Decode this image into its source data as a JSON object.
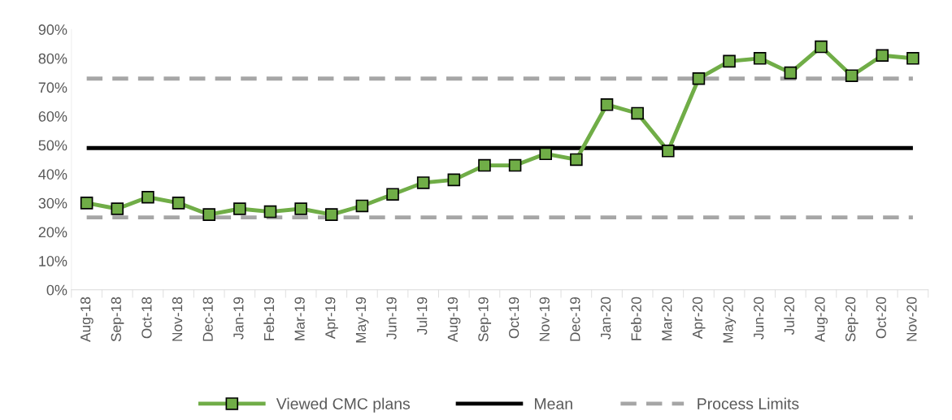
{
  "chart_data": {
    "type": "line",
    "categories": [
      "Aug-18",
      "Sep-18",
      "Oct-18",
      "Nov-18",
      "Dec-18",
      "Jan-19",
      "Feb-19",
      "Mar-19",
      "Apr-19",
      "May-19",
      "Jun-19",
      "Jul-19",
      "Aug-19",
      "Sep-19",
      "Oct-19",
      "Nov-19",
      "Dec-19",
      "Jan-20",
      "Feb-20",
      "Mar-20",
      "Apr-20",
      "May-20",
      "Jun-20",
      "Jul-20",
      "Aug-20",
      "Sep-20",
      "Oct-20",
      "Nov-20"
    ],
    "series": [
      {
        "name": "Viewed CMC plans",
        "color": "#70ad47",
        "values": [
          30,
          28,
          32,
          30,
          26,
          28,
          27,
          28,
          26,
          29,
          33,
          37,
          38,
          43,
          43,
          47,
          45,
          64,
          61,
          48,
          73,
          79,
          80,
          75,
          84,
          74,
          81,
          80
        ]
      }
    ],
    "ref_lines": [
      {
        "axis": "y",
        "value": 49,
        "label": "Mean",
        "color": "#000000",
        "line_style": "solid"
      },
      {
        "axis": "y",
        "value": 73,
        "label": "Process Limits",
        "color": "#a6a6a6",
        "line_style": "dashed"
      },
      {
        "axis": "y",
        "value": 25,
        "color": "#a6a6a6",
        "line_style": "dashed"
      }
    ],
    "ylim": [
      0,
      90
    ],
    "yticks": [
      {
        "value": 0,
        "label": "0%"
      },
      {
        "value": 10,
        "label": "10%"
      },
      {
        "value": 20,
        "label": "20%"
      },
      {
        "value": 30,
        "label": "30%"
      },
      {
        "value": 40,
        "label": "40%"
      },
      {
        "value": 50,
        "label": "50%"
      },
      {
        "value": 60,
        "label": "60%"
      },
      {
        "value": 70,
        "label": "70%"
      },
      {
        "value": 80,
        "label": "80%"
      },
      {
        "value": 90,
        "label": "90%"
      }
    ],
    "marker": "square",
    "line_style": "solid",
    "grid": false,
    "legend": "bottom"
  }
}
